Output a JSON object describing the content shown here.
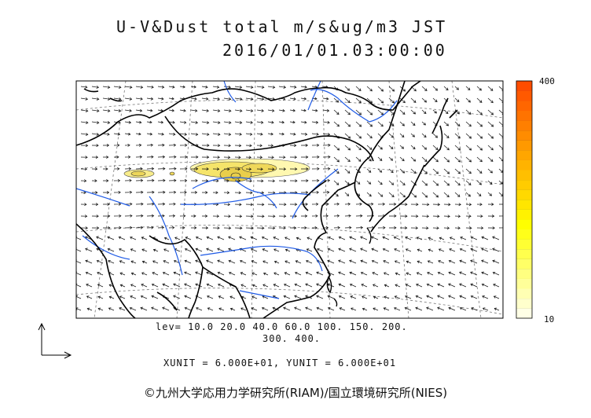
{
  "header": {
    "title": "U-V&Dust total m/s&ug/m3 JST",
    "datetime": "2016/01/01.03:00:00"
  },
  "legend": {
    "levels_line1": "lev= 10.0 20.0 40.0 60.0 100. 150. 200.",
    "levels_line2": "300. 400.",
    "units": "XUNIT = 6.000E+01, YUNIT = 6.000E+01"
  },
  "colorbar": {
    "max_label": "400",
    "min_label": "10",
    "colors": [
      "#FFFFE6",
      "#FFFFCC",
      "#FFFFB3",
      "#FFFF99",
      "#FFFF80",
      "#FFFF66",
      "#FFFF4D",
      "#FFFF33",
      "#FFFF1A",
      "#FFFF00",
      "#FFF200",
      "#FFE600",
      "#FFD900",
      "#FFCC00",
      "#FFBF00",
      "#FFB300",
      "#FFA600",
      "#FF9900",
      "#FF8C00",
      "#FF7F00",
      "#FF7300",
      "#FF6600",
      "#FF5900",
      "#FF4D00"
    ]
  },
  "credit": "©九州大学応用力学研究所(RIAM)/国立環境研究所(NIES)",
  "colors": {
    "coast": "#000000",
    "river": "#1E5AE6",
    "dust_light": "#FFF5A0",
    "dust_mid": "#F2E05A",
    "dust_dark": "#E8C840"
  }
}
